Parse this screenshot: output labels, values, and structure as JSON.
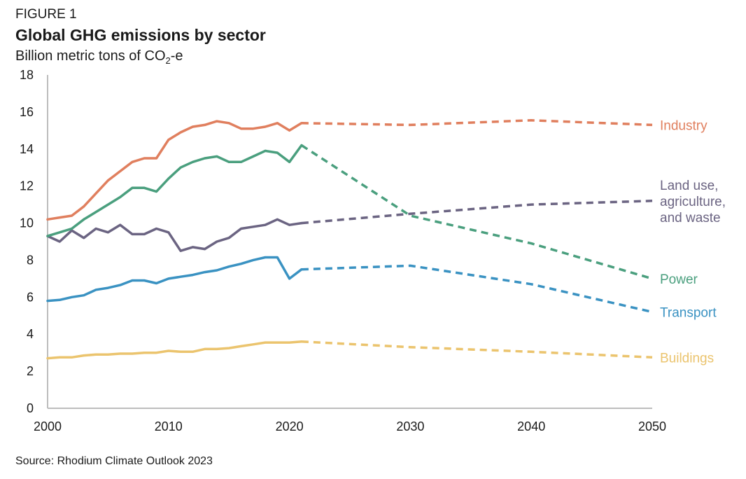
{
  "figure_label": "FIGURE 1",
  "source": "Source: Rhodium Climate Outlook 2023",
  "chart_data": {
    "type": "line",
    "title": "Global GHG emissions by sector",
    "ylabel": {
      "prefix": "Billion metric tons of CO",
      "subscript": "2",
      "suffix": "-e"
    },
    "xlabel": "",
    "xlim": [
      2000,
      2050
    ],
    "ylim": [
      0,
      18
    ],
    "x_ticks": [
      2000,
      2010,
      2020,
      2030,
      2040,
      2050
    ],
    "y_ticks": [
      0,
      2,
      4,
      6,
      8,
      10,
      12,
      14,
      16,
      18
    ],
    "grid": false,
    "historical_years": [
      2000,
      2001,
      2002,
      2003,
      2004,
      2005,
      2006,
      2007,
      2008,
      2009,
      2010,
      2011,
      2012,
      2013,
      2014,
      2015,
      2016,
      2017,
      2018,
      2019,
      2020,
      2021
    ],
    "projection_years": [
      2021,
      2030,
      2040,
      2050
    ],
    "series": [
      {
        "name": "Industry",
        "label_lines": [
          "Industry"
        ],
        "color": "#E07F5E",
        "historical": [
          10.2,
          10.3,
          10.4,
          10.9,
          11.6,
          12.3,
          12.8,
          13.3,
          13.5,
          13.5,
          14.5,
          14.9,
          15.2,
          15.3,
          15.5,
          15.4,
          15.1,
          15.1,
          15.2,
          15.4,
          15.0,
          15.4
        ],
        "projection": [
          15.4,
          15.3,
          15.55,
          15.3
        ]
      },
      {
        "name": "Land use, agriculture, and waste",
        "label_lines": [
          "Land use,",
          "agriculture,",
          "and waste"
        ],
        "color": "#6B6482",
        "historical": [
          9.3,
          9.0,
          9.6,
          9.2,
          9.7,
          9.5,
          9.9,
          9.4,
          9.4,
          9.7,
          9.5,
          8.5,
          8.7,
          8.6,
          9.0,
          9.2,
          9.7,
          9.8,
          9.9,
          10.2,
          9.9,
          10.0
        ],
        "projection": [
          10.0,
          10.5,
          11.0,
          11.2
        ]
      },
      {
        "name": "Power",
        "label_lines": [
          "Power"
        ],
        "color": "#4A9F7E",
        "historical": [
          9.3,
          9.5,
          9.7,
          10.2,
          10.6,
          11.0,
          11.4,
          11.9,
          11.9,
          11.7,
          12.4,
          13.0,
          13.3,
          13.5,
          13.6,
          13.3,
          13.3,
          13.6,
          13.9,
          13.8,
          13.3,
          14.2
        ],
        "projection": [
          14.2,
          10.4,
          8.9,
          7.0
        ]
      },
      {
        "name": "Transport",
        "label_lines": [
          "Transport"
        ],
        "color": "#3A92C2",
        "historical": [
          5.8,
          5.85,
          6.0,
          6.1,
          6.4,
          6.5,
          6.65,
          6.9,
          6.9,
          6.75,
          7.0,
          7.1,
          7.2,
          7.35,
          7.45,
          7.65,
          7.8,
          8.0,
          8.15,
          8.15,
          7.0,
          7.5
        ],
        "projection": [
          7.5,
          7.7,
          6.7,
          5.2
        ]
      },
      {
        "name": "Buildings",
        "label_lines": [
          "Buildings"
        ],
        "color": "#EBC46E",
        "historical": [
          2.7,
          2.75,
          2.75,
          2.85,
          2.9,
          2.9,
          2.95,
          2.95,
          3.0,
          3.0,
          3.1,
          3.05,
          3.05,
          3.2,
          3.2,
          3.25,
          3.35,
          3.45,
          3.55,
          3.55,
          3.55,
          3.6
        ],
        "projection": [
          3.6,
          3.3,
          3.05,
          2.75
        ]
      }
    ]
  }
}
